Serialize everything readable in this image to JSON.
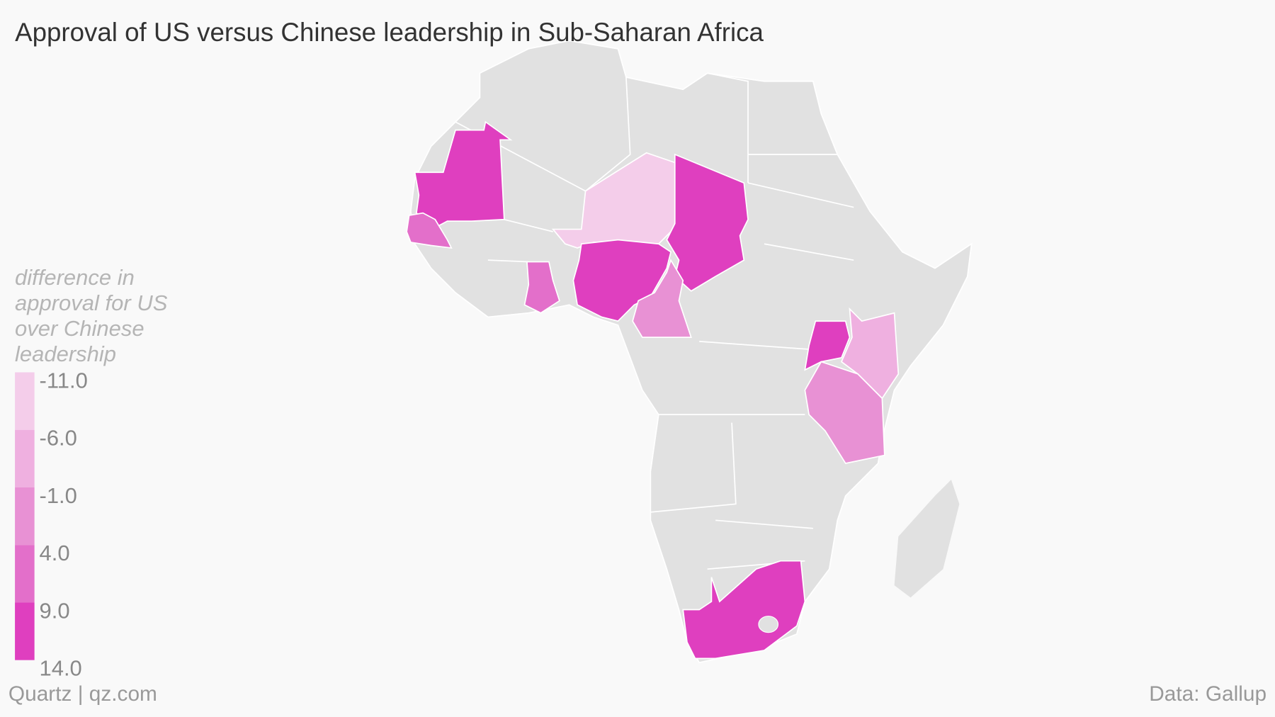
{
  "chart_data": {
    "type": "choropleth",
    "title": "Approval of US versus Chinese leadership in Sub-Saharan Africa",
    "legend_title": "difference in approval for US over Chinese leadership",
    "legend_ticks": [
      {
        "value": -11,
        "label": "-11.0"
      },
      {
        "value": -6,
        "label": "-6.0"
      },
      {
        "value": -1,
        "label": "-1.0"
      },
      {
        "value": 4,
        "label": "4.0"
      },
      {
        "value": 9,
        "label": "9.0"
      },
      {
        "value": 14,
        "label": "14.0"
      }
    ],
    "colors": [
      "#f4cdea",
      "#efb0e0",
      "#e891d4",
      "#e36fca",
      "#df3fbf"
    ],
    "regions": [
      {
        "value": 12
      },
      {
        "value": 7
      },
      {
        "value": 7
      },
      {
        "value": -9
      },
      {
        "value": 12
      },
      {
        "value": 12
      },
      {
        "value": 1
      },
      {
        "value": 12
      },
      {
        "value": -4
      },
      {
        "value": 1
      },
      {
        "value": 12
      }
    ],
    "source_left": "Quartz | qz.com",
    "source_right": "Data: Gallup"
  }
}
